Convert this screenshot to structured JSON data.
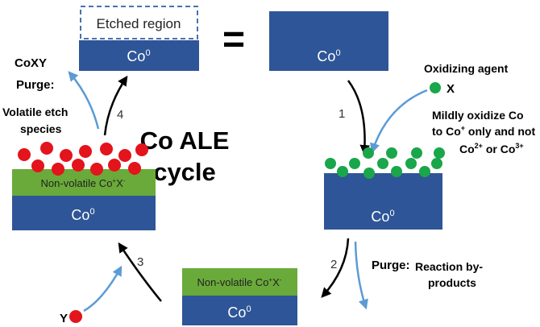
{
  "title": {
    "line1": "Co ALE",
    "line2": "cycle"
  },
  "labels": {
    "etched_region": "Etched region",
    "equals": "=",
    "co0": "Co",
    "co0_sup": "0",
    "nonvolatile": "Non-volatile Co",
    "nonvolatile_sup1": "+",
    "nonvolatile_x": "X",
    "nonvolatile_sup2": "-"
  },
  "steps": {
    "s1": "1",
    "s2": "2",
    "s3": "3",
    "s4": "4"
  },
  "annotations": {
    "oxidizing_agent": "Oxidizing agent",
    "x_species": "X",
    "oxidize_line1": "Mildly oxidize Co",
    "oxidize_line2_pre": "to Co",
    "oxidize_line2_sup": "+",
    "oxidize_line2_post": " only and not",
    "oxidize_line3_a": "Co",
    "oxidize_line3_sup_a": "2+",
    "oxidize_line3_mid": " or Co",
    "oxidize_line3_sup_b": "3+",
    "purge": "Purge:",
    "reaction_line1": "Reaction by-",
    "reaction_line2": "products",
    "y_species": "Y",
    "coxy": "CoXY",
    "purge_left": "Purge:",
    "volatile_line1": "Volatile etch",
    "volatile_line2": "species"
  },
  "colors": {
    "substrate": "#2e5597",
    "layer": "#6aaa3a",
    "x_dot": "#1aa64a",
    "y_dot": "#e3141b",
    "arrow_black": "#000000",
    "arrow_blue": "#5b9bd5"
  }
}
